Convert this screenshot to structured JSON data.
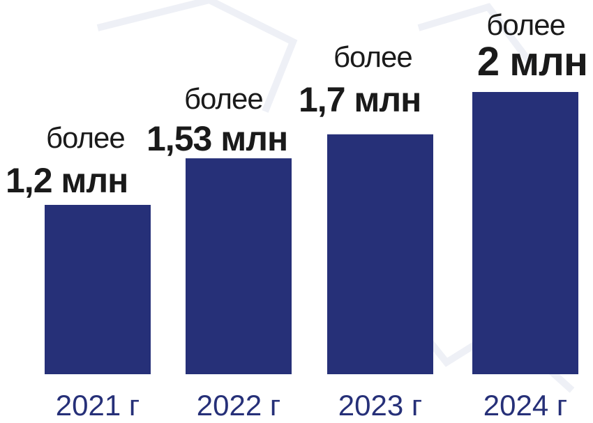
{
  "chart_data": {
    "type": "bar",
    "categories": [
      "2021 г",
      "2022 г",
      "2023 г",
      "2024 г"
    ],
    "values": [
      1.2,
      1.53,
      1.7,
      2.0
    ],
    "data_labels": [
      {
        "prefix": "",
        "value": "1,2 млн"
      },
      {
        "prefix": "более",
        "value": "1,53 млн"
      },
      {
        "prefix": "более",
        "value": "1,7 млн"
      },
      {
        "prefix": "более",
        "value": "2 млн"
      }
    ],
    "title": "",
    "xlabel": "",
    "ylabel": "",
    "ylim": [
      0,
      2.0
    ],
    "grid": false,
    "colors": {
      "bar": "#263078",
      "text": "#1a1a1a",
      "axis_text": "#263078"
    }
  }
}
